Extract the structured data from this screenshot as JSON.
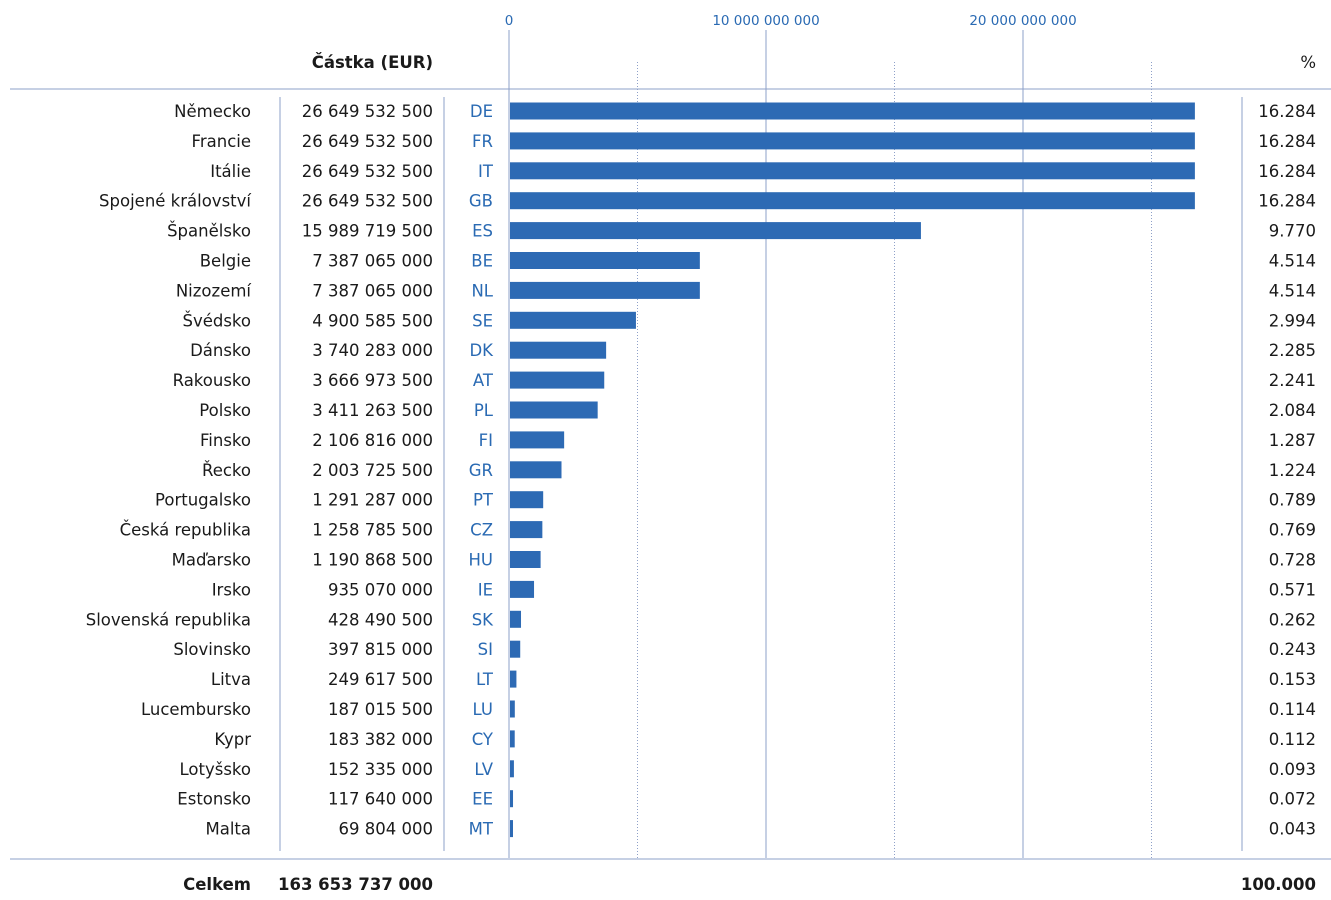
{
  "chart_data": {
    "type": "bar",
    "orientation": "horizontal",
    "amount_header": "Částka (EUR)",
    "percent_header": "%",
    "total_label": "Celkem",
    "total_amount": "163 653 737 000",
    "total_percent": "100.000",
    "xlim": [
      0,
      28000000000
    ],
    "ticks": [
      {
        "value": 0,
        "label": "0"
      },
      {
        "value": 10000000000,
        "label": "10 000 000 000"
      },
      {
        "value": 20000000000,
        "label": "20 000 000 000"
      }
    ],
    "minor_gridlines": [
      5000000000,
      15000000000,
      25000000000
    ],
    "bar_color": "#2d6ab4",
    "accent_color": "#2a6ab3",
    "rows": [
      {
        "country": "Německo",
        "amount": "26 649 532 500",
        "code": "DE",
        "value": 26649532500,
        "percent": "16.284"
      },
      {
        "country": "Francie",
        "amount": "26 649 532 500",
        "code": "FR",
        "value": 26649532500,
        "percent": "16.284"
      },
      {
        "country": "Itálie",
        "amount": "26 649 532 500",
        "code": "IT",
        "value": 26649532500,
        "percent": "16.284"
      },
      {
        "country": "Spojené království",
        "amount": "26 649 532 500",
        "code": "GB",
        "value": 26649532500,
        "percent": "16.284"
      },
      {
        "country": "Španělsko",
        "amount": "15 989 719 500",
        "code": "ES",
        "value": 15989719500,
        "percent": "9.770"
      },
      {
        "country": "Belgie",
        "amount": "7 387 065 000",
        "code": "BE",
        "value": 7387065000,
        "percent": "4.514"
      },
      {
        "country": "Nizozemí",
        "amount": "7 387 065 000",
        "code": "NL",
        "value": 7387065000,
        "percent": "4.514"
      },
      {
        "country": "Švédsko",
        "amount": "4 900 585 500",
        "code": "SE",
        "value": 4900585500,
        "percent": "2.994"
      },
      {
        "country": "Dánsko",
        "amount": "3 740 283 000",
        "code": "DK",
        "value": 3740283000,
        "percent": "2.285"
      },
      {
        "country": "Rakousko",
        "amount": "3 666 973 500",
        "code": "AT",
        "value": 3666973500,
        "percent": "2.241"
      },
      {
        "country": "Polsko",
        "amount": "3 411 263 500",
        "code": "PL",
        "value": 3411263500,
        "percent": "2.084"
      },
      {
        "country": "Finsko",
        "amount": "2 106 816 000",
        "code": "FI",
        "value": 2106816000,
        "percent": "1.287"
      },
      {
        "country": "Řecko",
        "amount": "2 003 725 500",
        "code": "GR",
        "value": 2003725500,
        "percent": "1.224"
      },
      {
        "country": "Portugalsko",
        "amount": "1 291 287 000",
        "code": "PT",
        "value": 1291287000,
        "percent": "0.789"
      },
      {
        "country": "Česká republika",
        "amount": "1 258 785 500",
        "code": "CZ",
        "value": 1258785500,
        "percent": "0.769"
      },
      {
        "country": "Maďarsko",
        "amount": "1 190 868 500",
        "code": "HU",
        "value": 1190868500,
        "percent": "0.728"
      },
      {
        "country": "Irsko",
        "amount": "935 070 000",
        "code": "IE",
        "value": 935070000,
        "percent": "0.571"
      },
      {
        "country": "Slovenská republika",
        "amount": "428 490 500",
        "code": "SK",
        "value": 428490500,
        "percent": "0.262"
      },
      {
        "country": "Slovinsko",
        "amount": "397 815 000",
        "code": "SI",
        "value": 397815000,
        "percent": "0.243"
      },
      {
        "country": "Litva",
        "amount": "249 617 500",
        "code": "LT",
        "value": 249617500,
        "percent": "0.153"
      },
      {
        "country": "Lucembursko",
        "amount": "187 015 500",
        "code": "LU",
        "value": 187015500,
        "percent": "0.114"
      },
      {
        "country": "Kypr",
        "amount": "183 382 000",
        "code": "CY",
        "value": 183382000,
        "percent": "0.112"
      },
      {
        "country": "Lotyšsko",
        "amount": "152 335 000",
        "code": "LV",
        "value": 152335000,
        "percent": "0.093"
      },
      {
        "country": "Estonsko",
        "amount": "117 640 000",
        "code": "EE",
        "value": 117640000,
        "percent": "0.072"
      },
      {
        "country": "Malta",
        "amount": "69 804 000",
        "code": "MT",
        "value": 69804000,
        "percent": "0.043"
      }
    ]
  }
}
